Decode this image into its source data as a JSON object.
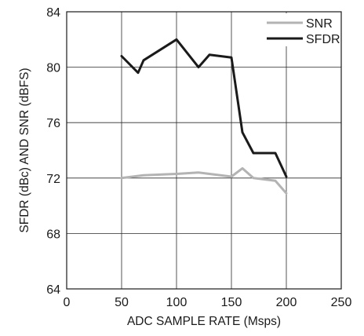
{
  "chart_data": {
    "type": "line",
    "title": "",
    "xlabel": "ADC SAMPLE RATE (Msps)",
    "ylabel": "SFDR (dBc) AND SNR (dBFS)",
    "xlim": [
      0,
      250
    ],
    "ylim": [
      64,
      84
    ],
    "xticks": [
      0,
      50,
      100,
      150,
      200,
      250
    ],
    "yticks": [
      64,
      68,
      72,
      76,
      80,
      84
    ],
    "grid": true,
    "legend_position": "top-right",
    "series": [
      {
        "name": "SNR",
        "color": "#b3b3b3",
        "points": [
          [
            50,
            72.0
          ],
          [
            70,
            72.2
          ],
          [
            100,
            72.3
          ],
          [
            120,
            72.4
          ],
          [
            130,
            72.3
          ],
          [
            150,
            72.1
          ],
          [
            160,
            72.7
          ],
          [
            170,
            72.0
          ],
          [
            190,
            71.8
          ],
          [
            200,
            70.9
          ]
        ]
      },
      {
        "name": "SFDR",
        "color": "#1a1a1a",
        "points": [
          [
            50,
            80.8
          ],
          [
            65,
            79.6
          ],
          [
            70,
            80.5
          ],
          [
            100,
            82.0
          ],
          [
            120,
            80.0
          ],
          [
            130,
            80.9
          ],
          [
            150,
            80.7
          ],
          [
            160,
            75.3
          ],
          [
            170,
            73.8
          ],
          [
            190,
            73.8
          ],
          [
            200,
            72.1
          ]
        ]
      }
    ]
  }
}
